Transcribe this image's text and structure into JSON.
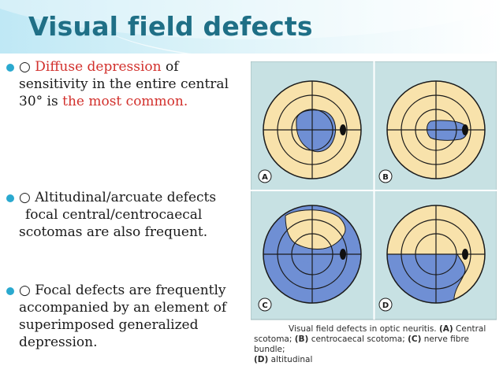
{
  "slide": {
    "title": "Visual field defects"
  },
  "bullets": [
    {
      "marker": "○",
      "segments": [
        {
          "text": "○ ",
          "color": "#1a1a1a"
        },
        {
          "text": "Diffuse depression",
          "color": "#d2302c"
        },
        {
          "text": " of sensitivity in the entire central 30° is ",
          "color": "#1a1a1a"
        },
        {
          "text": "the most common.",
          "color": "#d2302c"
        }
      ]
    },
    {
      "line1": "○ Altitudinal/arcuate defects",
      "line2": "focal central/centrocaecal",
      "line3": "scotomas are also frequent."
    },
    {
      "text": "○ Focal defects are frequently accompanied by an element of superimposed generalized depression."
    }
  ],
  "figure": {
    "panels": [
      {
        "label": "A"
      },
      {
        "label": "B"
      },
      {
        "label": "C"
      },
      {
        "label": "D"
      }
    ],
    "caption": {
      "line1": "Visual field defects in optic neuritis. ",
      "a_label": "(A)",
      "line1b": " Central",
      "line2a": "scotoma; ",
      "b_label": "(B)",
      "line2b": " centrocaecal scotoma; ",
      "c_label": "(C)",
      "line2c": " nerve fibre bundle;",
      "d_label": "(D)",
      "line3": " altitudinal"
    },
    "colors": {
      "panel_bg": "#c7e1e3",
      "field": "#f8e2ab",
      "defect": "#6f8fd4",
      "line": "#1b1b1b"
    }
  },
  "colors": {
    "title": "#1f6f86",
    "bullet_dot": "#2aa9cf",
    "emphasis": "#d2302c"
  }
}
